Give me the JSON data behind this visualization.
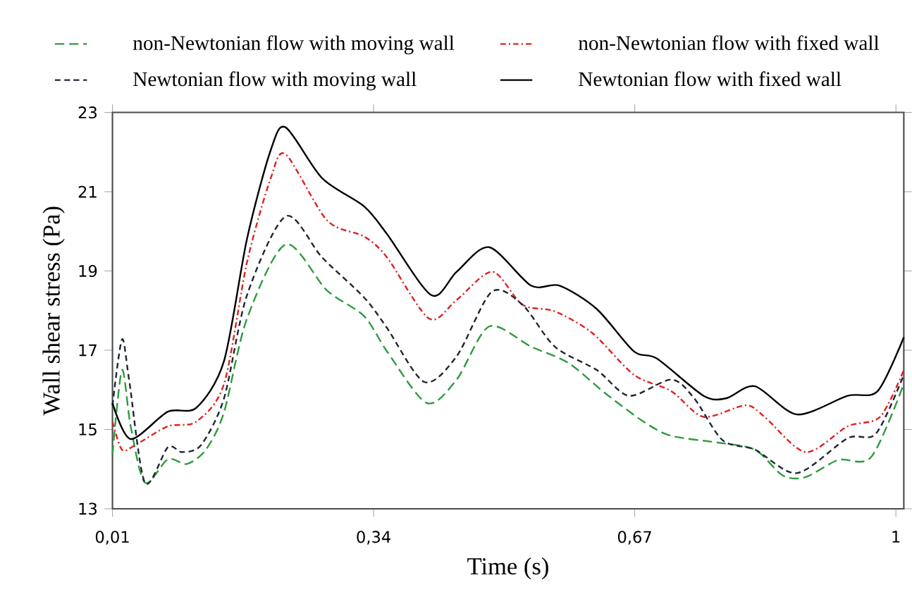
{
  "chart_data": {
    "type": "line",
    "xlabel": "Time (s)",
    "ylabel": "Wall shear stress (Pa)",
    "xlim": [
      0.01,
      1.01
    ],
    "xticks": [
      {
        "value": 0.01,
        "label": "0,01"
      },
      {
        "value": 0.34,
        "label": "0,34"
      },
      {
        "value": 0.67,
        "label": "0,67"
      },
      {
        "value": 1,
        "label": "1"
      }
    ],
    "ylim": [
      13,
      23
    ],
    "yticks": [
      13,
      15,
      17,
      19,
      21,
      23
    ],
    "legend": "top",
    "grid": false,
    "series": [
      {
        "name": "non-Newtonian flow with moving wall",
        "color": "#2e9b3f",
        "line_style": "dashed",
        "x": [
          0.01,
          0.022,
          0.033,
          0.051,
          0.08,
          0.104,
          0.128,
          0.151,
          0.18,
          0.229,
          0.281,
          0.328,
          0.357,
          0.407,
          0.445,
          0.486,
          0.539,
          0.586,
          0.633,
          0.681,
          0.716,
          0.775,
          0.822,
          0.857,
          0.886,
          0.927,
          0.969,
          1.01
        ],
        "values": [
          14.37,
          16.5,
          15.08,
          13.66,
          14.25,
          14.13,
          14.49,
          15.44,
          17.8,
          19.67,
          18.51,
          17.86,
          16.97,
          15.67,
          16.26,
          17.6,
          17.09,
          16.68,
          15.91,
          15.2,
          14.84,
          14.67,
          14.49,
          13.84,
          13.8,
          14.23,
          14.31,
          16.15
        ]
      },
      {
        "name": "non-Newtonian flow with fixed wall",
        "color": "#e02020",
        "line_style": "dashdot",
        "x": [
          0.01,
          0.022,
          0.039,
          0.08,
          0.116,
          0.151,
          0.18,
          0.21,
          0.229,
          0.281,
          0.328,
          0.357,
          0.41,
          0.445,
          0.49,
          0.528,
          0.569,
          0.616,
          0.669,
          0.716,
          0.757,
          0.81,
          0.834,
          0.886,
          0.939,
          0.98,
          1.01
        ],
        "values": [
          15.2,
          14.49,
          14.61,
          15.08,
          15.2,
          16.15,
          19.22,
          21.34,
          21.94,
          20.28,
          19.87,
          19.34,
          17.8,
          18.27,
          18.98,
          18.15,
          17.98,
          17.44,
          16.38,
          15.97,
          15.32,
          15.61,
          15.32,
          14.43,
          15.08,
          15.32,
          16.5
        ]
      },
      {
        "name": "Newtonian flow with moving wall",
        "color": "#1f2633",
        "line_style": "dotted",
        "x": [
          0.01,
          0.022,
          0.031,
          0.051,
          0.08,
          0.098,
          0.122,
          0.151,
          0.18,
          0.229,
          0.275,
          0.328,
          0.357,
          0.404,
          0.445,
          0.489,
          0.528,
          0.569,
          0.622,
          0.663,
          0.716,
          0.745,
          0.781,
          0.822,
          0.875,
          0.939,
          0.975,
          1.01
        ],
        "values": [
          15.6,
          17.27,
          16.26,
          13.66,
          14.55,
          14.43,
          14.61,
          15.79,
          18.39,
          20.38,
          19.34,
          18.33,
          17.56,
          16.2,
          16.85,
          18.47,
          18.15,
          17.09,
          16.5,
          15.85,
          16.26,
          15.79,
          14.73,
          14.49,
          13.9,
          14.78,
          14.9,
          16.38
        ]
      },
      {
        "name": "Newtonian flow with fixed wall",
        "color": "#000000",
        "line_style": "solid",
        "x": [
          0.01,
          0.033,
          0.08,
          0.116,
          0.151,
          0.18,
          0.21,
          0.229,
          0.275,
          0.328,
          0.357,
          0.413,
          0.445,
          0.486,
          0.539,
          0.575,
          0.622,
          0.669,
          0.698,
          0.757,
          0.786,
          0.822,
          0.875,
          0.939,
          0.977,
          1.01
        ],
        "values": [
          15.67,
          14.76,
          15.45,
          15.55,
          16.73,
          19.81,
          22.05,
          22.62,
          21.34,
          20.63,
          19.93,
          18.39,
          18.98,
          19.6,
          18.63,
          18.63,
          18.04,
          16.97,
          16.79,
          15.85,
          15.79,
          16.09,
          15.38,
          15.85,
          15.97,
          17.33
        ]
      }
    ]
  }
}
